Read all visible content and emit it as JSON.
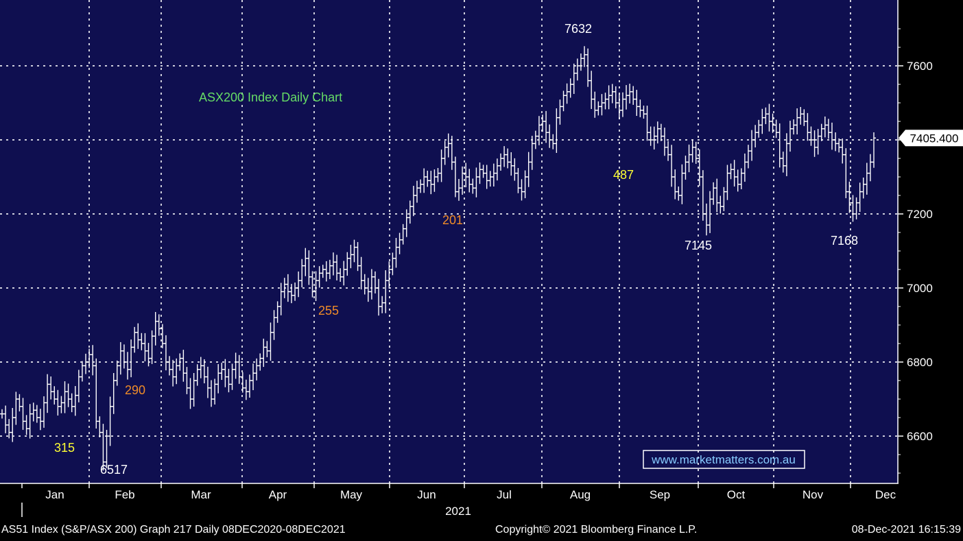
{
  "chart_data": {
    "type": "ohlc",
    "title": "ASX200 Index Daily Chart",
    "year_label": "2021",
    "months": [
      "Jan",
      "Feb",
      "Mar",
      "Apr",
      "May",
      "Jun",
      "Jul",
      "Aug",
      "Sep",
      "Oct",
      "Nov",
      "Dec"
    ],
    "y_ticks": [
      6600,
      6800,
      7000,
      7200,
      7400,
      7600
    ],
    "ylim": [
      6470,
      7770
    ],
    "last_price": "7405.400",
    "grid": true,
    "series": [
      {
        "name": "AS51 Index",
        "values": [
          6660,
          6630,
          6610,
          6650,
          6700,
          6680,
          6640,
          6620,
          6660,
          6670,
          6650,
          6640,
          6690,
          6740,
          6720,
          6700,
          6680,
          6690,
          6720,
          6700,
          6680,
          6710,
          6760,
          6790,
          6800,
          6820,
          6790,
          6640,
          6610,
          6530,
          6600,
          6680,
          6750,
          6790,
          6830,
          6800,
          6780,
          6840,
          6880,
          6860,
          6850,
          6830,
          6810,
          6870,
          6910,
          6890,
          6850,
          6800,
          6780,
          6760,
          6790,
          6810,
          6770,
          6730,
          6700,
          6750,
          6780,
          6790,
          6760,
          6730,
          6700,
          6740,
          6770,
          6780,
          6760,
          6740,
          6780,
          6800,
          6760,
          6730,
          6720,
          6750,
          6770,
          6790,
          6810,
          6840,
          6830,
          6880,
          6920,
          6950,
          6990,
          7010,
          6990,
          6980,
          7000,
          7020,
          7060,
          7080,
          7030,
          6990,
          7020,
          7040,
          7050,
          7040,
          7060,
          7070,
          7040,
          7030,
          7050,
          7080,
          7090,
          7110,
          7060,
          7020,
          7000,
          6990,
          7030,
          7000,
          6950,
          6960,
          7020,
          7050,
          7080,
          7110,
          7130,
          7160,
          7190,
          7220,
          7250,
          7270,
          7280,
          7300,
          7290,
          7280,
          7300,
          7310,
          7350,
          7380,
          7390,
          7340,
          7260,
          7270,
          7310,
          7300,
          7280,
          7270,
          7300,
          7320,
          7310,
          7290,
          7300,
          7310,
          7330,
          7350,
          7360,
          7340,
          7330,
          7310,
          7270,
          7260,
          7300,
          7340,
          7390,
          7410,
          7440,
          7450,
          7420,
          7400,
          7390,
          7460,
          7490,
          7520,
          7530,
          7550,
          7580,
          7600,
          7620,
          7630,
          7560,
          7510,
          7480,
          7490,
          7500,
          7510,
          7520,
          7530,
          7500,
          7480,
          7510,
          7520,
          7530,
          7510,
          7490,
          7480,
          7470,
          7420,
          7400,
          7410,
          7430,
          7410,
          7380,
          7360,
          7300,
          7260,
          7250,
          7310,
          7340,
          7360,
          7380,
          7350,
          7300,
          7200,
          7170,
          7240,
          7270,
          7230,
          7220,
          7260,
          7310,
          7320,
          7300,
          7280,
          7310,
          7340,
          7370,
          7400,
          7420,
          7440,
          7460,
          7470,
          7450,
          7440,
          7420,
          7350,
          7330,
          7390,
          7430,
          7440,
          7460,
          7470,
          7450,
          7420,
          7400,
          7380,
          7410,
          7430,
          7440,
          7420,
          7400,
          7390,
          7380,
          7360,
          7260,
          7230,
          7200,
          7230,
          7260,
          7280,
          7310,
          7340,
          7405
        ]
      }
    ],
    "annotations": [
      {
        "text": "7632",
        "color": "white"
      },
      {
        "text": "487",
        "color": "yellow"
      },
      {
        "text": "7145",
        "color": "white"
      },
      {
        "text": "7168",
        "color": "white"
      },
      {
        "text": "201",
        "color": "orange"
      },
      {
        "text": "255",
        "color": "orange"
      },
      {
        "text": "290",
        "color": "orange"
      },
      {
        "text": "315",
        "color": "yellow"
      },
      {
        "text": "6517",
        "color": "white"
      }
    ]
  },
  "colors": {
    "background": "#0f0f50",
    "bars": "#ffffff",
    "grid": "#ffffff",
    "title": "#66dd66",
    "yellow": "#ffff33",
    "orange": "#f08c28",
    "axis_bg": "#000000",
    "watermark_border": "#ffffff",
    "watermark_text": "#88ccff"
  },
  "watermark": "www.marketmatters.com.au",
  "footer": {
    "left": "AS51 Index (S&P/ASX 200) Graph 217  Daily 08DEC2020-08DEC2021",
    "center": "Copyright© 2021 Bloomberg Finance L.P.",
    "right": "08-Dec-2021 16:15:39"
  }
}
